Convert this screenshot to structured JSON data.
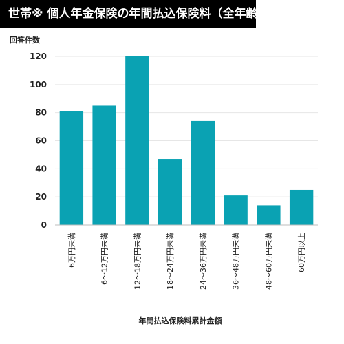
{
  "chart_data": {
    "type": "bar",
    "title": "世帯※ 個人年金保険の年間払込保険料（全年齢）",
    "ylabel": "回答件数",
    "xlabel": "年間払込保険料累計金額",
    "categories": [
      "6万円未満",
      "6～12万円未満",
      "12～18万円未満",
      "18～24万円未満",
      "24～36万円未満",
      "36～48万円未満",
      "48～60万円未満",
      "60万円以上"
    ],
    "values": [
      81,
      85,
      120,
      47,
      74,
      21,
      14,
      25
    ],
    "ylim": [
      0,
      120
    ],
    "yticks": [
      0,
      20,
      40,
      60,
      80,
      100,
      120
    ],
    "grid": true,
    "legend": "none",
    "bar_color": "#0aa2b3"
  }
}
